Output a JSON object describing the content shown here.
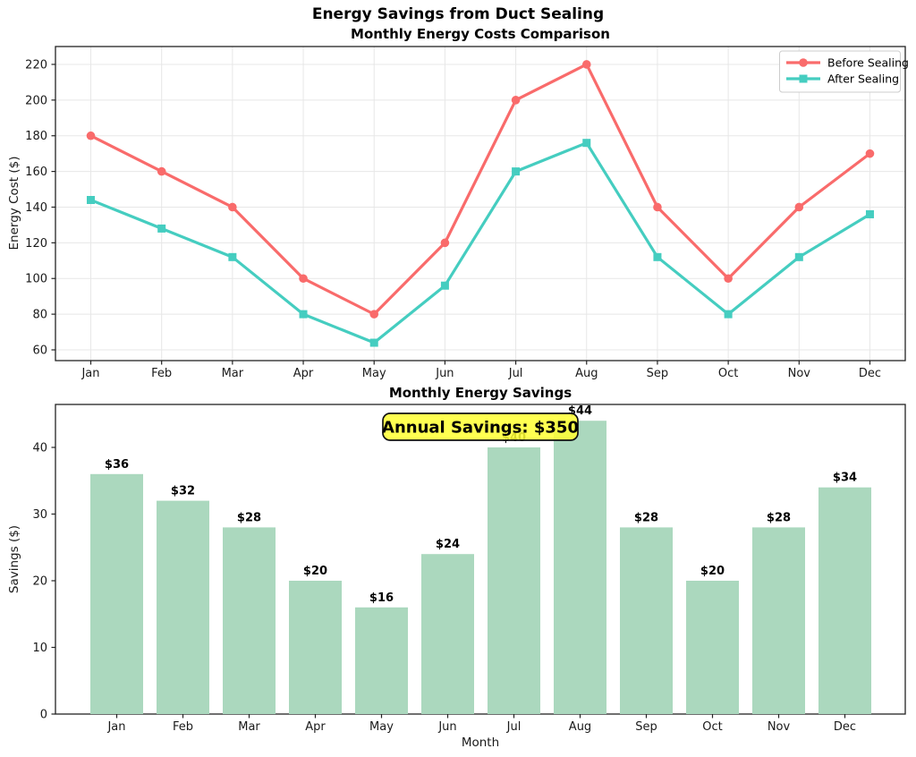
{
  "figure": {
    "title": "Energy Savings from Duct Sealing"
  },
  "chart_data": [
    {
      "type": "line",
      "title": "Monthly Energy Costs Comparison",
      "xlabel": "",
      "ylabel": "Energy Cost ($)",
      "categories": [
        "Jan",
        "Feb",
        "Mar",
        "Apr",
        "May",
        "Jun",
        "Jul",
        "Aug",
        "Sep",
        "Oct",
        "Nov",
        "Dec"
      ],
      "series": [
        {
          "name": "Before Sealing",
          "color": "#F96B6B",
          "marker": "circle",
          "values": [
            180,
            160,
            140,
            100,
            80,
            120,
            200,
            220,
            140,
            100,
            140,
            170
          ]
        },
        {
          "name": "After Sealing",
          "color": "#45CDC0",
          "marker": "square",
          "values": [
            144,
            128,
            112,
            80,
            64,
            96,
            160,
            176,
            112,
            80,
            112,
            136
          ]
        }
      ],
      "yticks": [
        60,
        80,
        100,
        120,
        140,
        160,
        180,
        200,
        220
      ],
      "ylim": [
        55,
        228
      ],
      "grid": true,
      "legend_position": "upper right",
      "frame": true
    },
    {
      "type": "bar",
      "title": "Monthly Energy Savings",
      "xlabel": "Month",
      "ylabel": "Savings ($)",
      "categories": [
        "Jan",
        "Feb",
        "Mar",
        "Apr",
        "May",
        "Jun",
        "Jul",
        "Aug",
        "Sep",
        "Oct",
        "Nov",
        "Dec"
      ],
      "values": [
        36,
        32,
        28,
        20,
        16,
        24,
        40,
        44,
        28,
        20,
        28,
        34
      ],
      "bar_labels": [
        "$36",
        "$32",
        "$28",
        "$20",
        "$16",
        "$24",
        "$40",
        "$44",
        "$28",
        "$20",
        "$28",
        "$34"
      ],
      "bar_color": "#ABD8BE",
      "yticks": [
        0,
        10,
        20,
        30,
        40
      ],
      "ylim": [
        0,
        46.5
      ],
      "grid": false,
      "frame": true,
      "annotation": {
        "text": "Annual Savings: $350",
        "fill_color": "#FFFF33",
        "border_color": "#111111",
        "text_color": "#000000"
      }
    }
  ],
  "style": {
    "grid_color": "#e7e7e7",
    "spine_color": "#222222",
    "tick_color": "#1a1a1a",
    "legend_border": "#cccccc",
    "legend_bg": "#ffffff"
  }
}
